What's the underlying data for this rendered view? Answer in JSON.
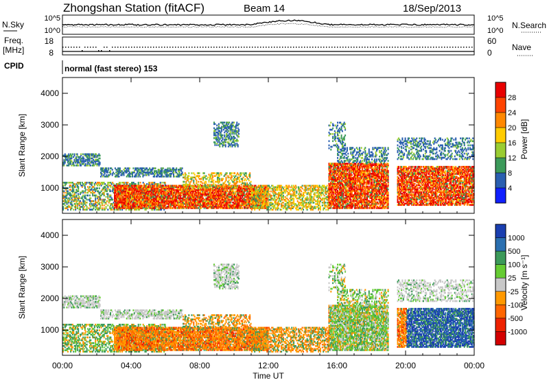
{
  "header": {
    "station": "Zhongshan Station (fitACF)",
    "beam": "Beam 14",
    "date": "18/Sep/2013"
  },
  "panels": {
    "nsky": {
      "label": "N.Sky",
      "tick_hi": "10^5",
      "tick_lo": "10^0",
      "right_label": "N.Search",
      "right_tick_hi": "10^5",
      "right_tick_lo": "10^0"
    },
    "freq": {
      "label_1": "Freq.",
      "label_2": "[MHz]",
      "tick_hi": "18",
      "tick_lo": "8",
      "right_label": "Nave",
      "right_tick_hi": "60",
      "right_tick_lo": "0"
    },
    "cpid": {
      "label": "CPID",
      "text": "normal (fast stereo) 153"
    }
  },
  "chart_data": [
    {
      "type": "heatmap",
      "name": "power",
      "ylabel": "Slant Range [km]",
      "xlabel": "Time UT",
      "y_ticks": [
        "4000",
        "3000",
        "2000",
        "1000"
      ],
      "x_ticks": [
        "00:00",
        "04:00",
        "08:00",
        "12:00",
        "16:00",
        "20:00",
        "00:00"
      ],
      "ylim": [
        200,
        4500
      ],
      "xlim_hours": [
        0,
        24
      ],
      "colorbar": {
        "label": "Power [dB]",
        "ticks": [
          "28",
          "24",
          "20",
          "16",
          "12",
          "8",
          "4"
        ],
        "colors": [
          "#e80000",
          "#ff4400",
          "#ff8800",
          "#ffcc00",
          "#9acd32",
          "#3c9a5a",
          "#2a5fb0",
          "#1020ff"
        ]
      }
    },
    {
      "type": "heatmap",
      "name": "velocity",
      "ylabel": "Slant Range [km]",
      "xlabel": "Time UT",
      "y_ticks": [
        "4000",
        "3000",
        "2000",
        "1000"
      ],
      "x_ticks": [
        "00:00",
        "04:00",
        "08:00",
        "12:00",
        "16:00",
        "20:00",
        "00:00"
      ],
      "ylim": [
        200,
        4500
      ],
      "xlim_hours": [
        0,
        24
      ],
      "colorbar": {
        "label": "Velocity [m s⁻¹]",
        "ticks": [
          "1000",
          "500",
          "100",
          "25",
          "-25",
          "-100",
          "-500",
          "-1000"
        ],
        "colors": [
          "#1a3fb0",
          "#2a6fb0",
          "#3c9a5a",
          "#66cc33",
          "#c8c8c8",
          "#ff9900",
          "#ff6600",
          "#ee2200",
          "#d40000"
        ]
      }
    }
  ]
}
